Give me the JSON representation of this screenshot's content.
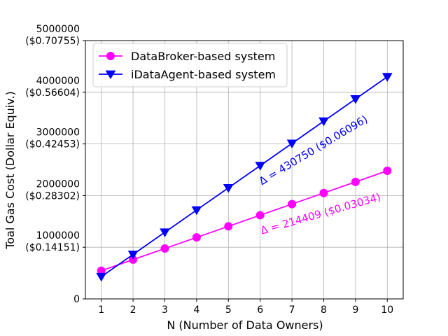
{
  "chart_data": {
    "type": "line",
    "xlabel": "N (Number of Data Owners)",
    "ylabel": "Toal Gas Cost (Dollar Equiv.)",
    "x": [
      1,
      2,
      3,
      4,
      5,
      6,
      7,
      8,
      9,
      10
    ],
    "xlim": [
      0.5,
      10.5
    ],
    "ylim": [
      0,
      5000000
    ],
    "grid": true,
    "legend_position": "top-left",
    "x_ticks": [
      "1",
      "2",
      "3",
      "4",
      "5",
      "6",
      "7",
      "8",
      "9",
      "10"
    ],
    "y_ticks": [
      {
        "value": 0,
        "lines": [
          "0"
        ]
      },
      {
        "value": 1000000,
        "lines": [
          "1000000",
          "($0.14151)"
        ]
      },
      {
        "value": 2000000,
        "lines": [
          "2000000",
          "($0.28302)"
        ]
      },
      {
        "value": 3000000,
        "lines": [
          "3000000",
          "($0.42453)"
        ]
      },
      {
        "value": 4000000,
        "lines": [
          "4000000",
          "($0.56604)"
        ]
      },
      {
        "value": 5000000,
        "lines": [
          "5000000",
          "($0.70755)"
        ]
      }
    ],
    "series": [
      {
        "name": "DataBroker-based system",
        "color": "#ff00ff",
        "marker": "circle",
        "values": [
          545000,
          760000,
          975000,
          1190000,
          1405000,
          1620000,
          1835000,
          2050000,
          2265000,
          2480000
        ]
      },
      {
        "name": "iDataAgent-based system",
        "color": "#0000ff",
        "marker": "triangle-down",
        "values": [
          430000,
          860000,
          1290000,
          1720000,
          2150000,
          2580000,
          3010000,
          3440000,
          3870000,
          4300000
        ]
      }
    ],
    "annotations": [
      {
        "text": "Δ = 430750 ($0.06096)",
        "color": "#0000ff",
        "x": 6.05,
        "y": 2200000,
        "rotation_deg": -31
      },
      {
        "text": "Δ = 214409 ($0.03034)",
        "color": "#ff00ff",
        "x": 6.05,
        "y": 1250000,
        "rotation_deg": -16
      }
    ]
  }
}
